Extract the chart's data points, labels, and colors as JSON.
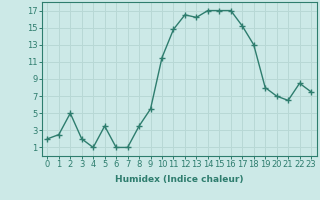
{
  "x": [
    0,
    1,
    2,
    3,
    4,
    5,
    6,
    7,
    8,
    9,
    10,
    11,
    12,
    13,
    14,
    15,
    16,
    17,
    18,
    19,
    20,
    21,
    22,
    23
  ],
  "y": [
    2,
    2.5,
    5,
    2,
    1,
    3.5,
    1,
    1,
    3.5,
    5.5,
    11.5,
    14.8,
    16.5,
    16.2,
    17,
    17,
    17,
    15.2,
    13,
    8,
    7,
    6.5,
    8.5,
    7.5
  ],
  "line_color": "#2e7d6e",
  "marker": "+",
  "marker_size": 4,
  "marker_lw": 1.0,
  "bg_color": "#cce9e7",
  "grid_color": "#b8d8d5",
  "xlabel": "Humidex (Indice chaleur)",
  "ylim": [
    0,
    18
  ],
  "xlim": [
    -0.5,
    23.5
  ],
  "yticks": [
    1,
    3,
    5,
    7,
    9,
    11,
    13,
    15,
    17
  ],
  "xticks": [
    0,
    1,
    2,
    3,
    4,
    5,
    6,
    7,
    8,
    9,
    10,
    11,
    12,
    13,
    14,
    15,
    16,
    17,
    18,
    19,
    20,
    21,
    22,
    23
  ],
  "xlabel_fontsize": 6.5,
  "tick_fontsize": 6.0,
  "linewidth": 1.0
}
